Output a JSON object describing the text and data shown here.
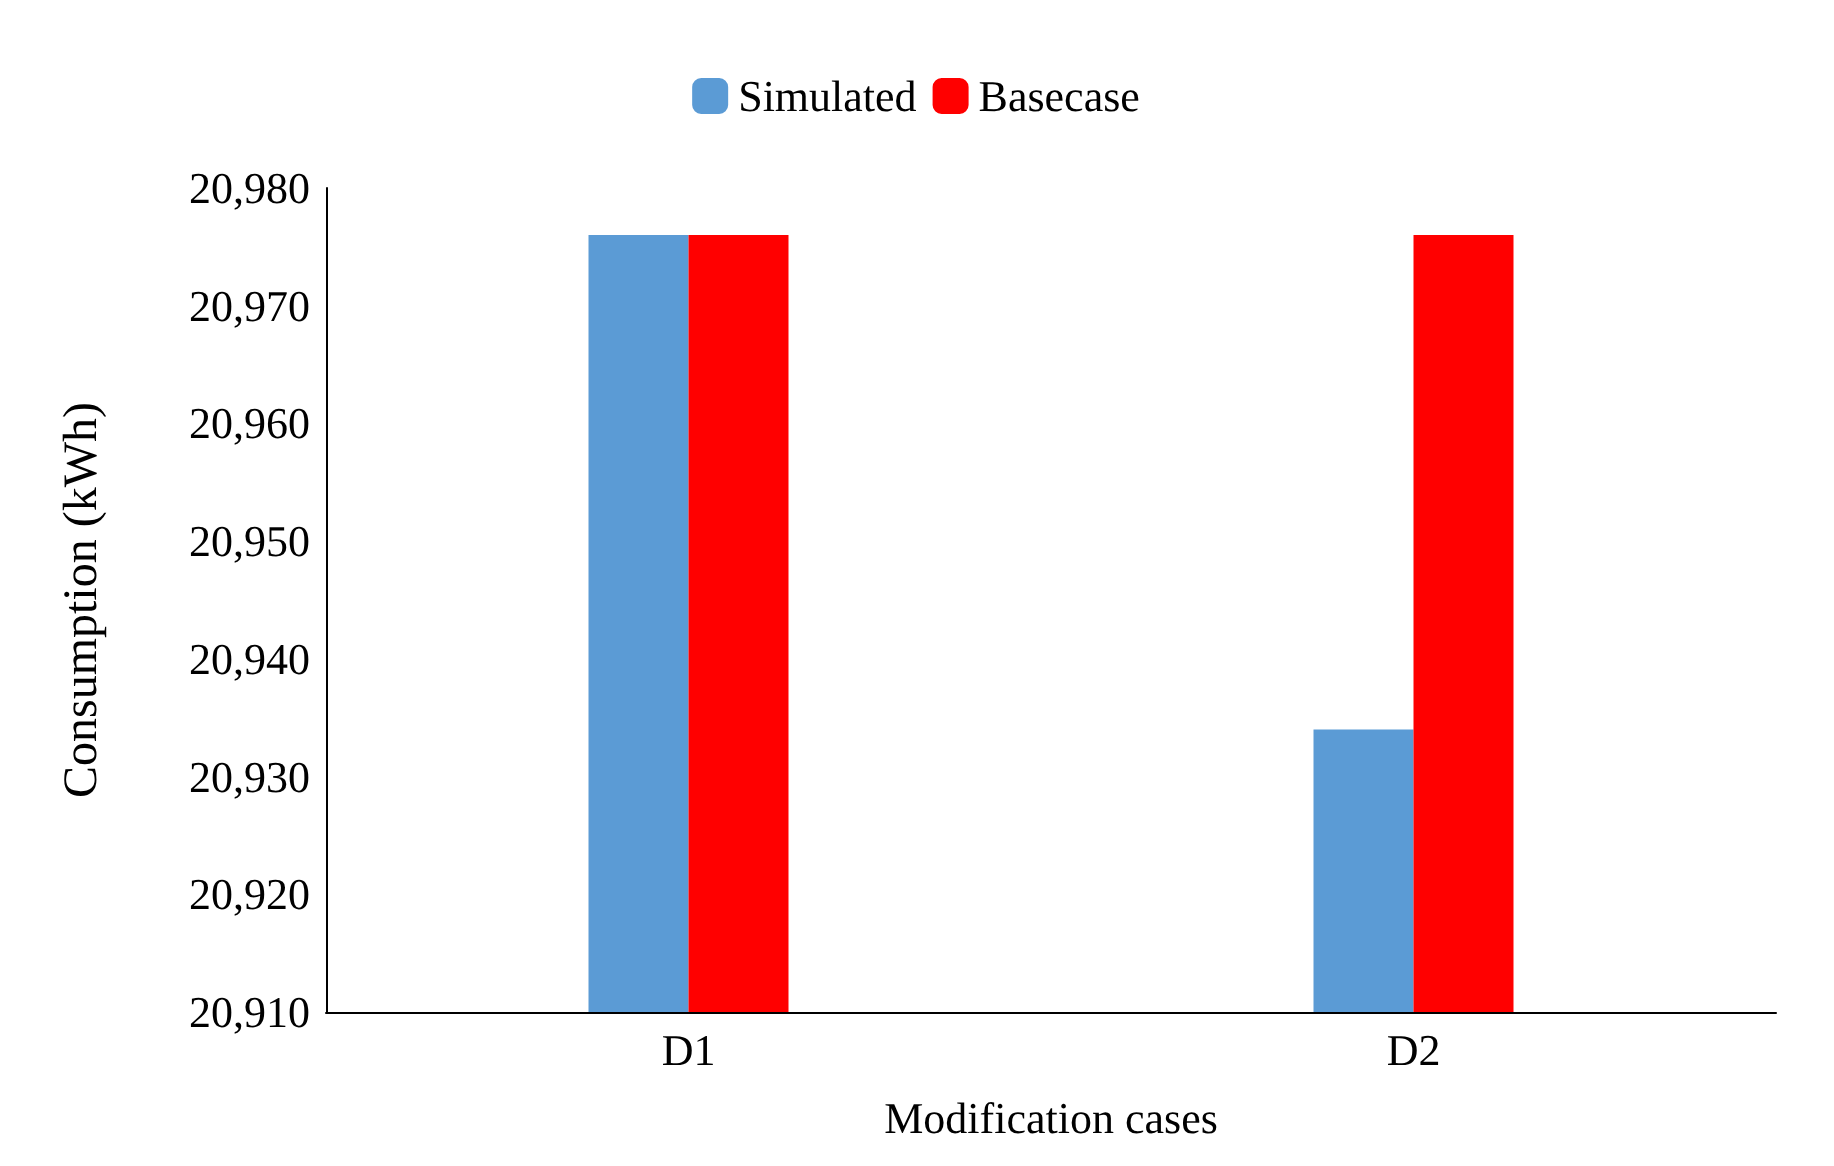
{
  "chart_data": {
    "type": "bar",
    "xlabel": "Modification cases",
    "ylabel": "Consumption (kWh)",
    "categories": [
      "D1",
      "D2"
    ],
    "series": [
      {
        "name": "Simulated",
        "color": "#5b9bd5",
        "values": [
          20976,
          20934
        ]
      },
      {
        "name": "Basecase",
        "color": "#ff0000",
        "values": [
          20976,
          20976
        ]
      }
    ],
    "ylim": [
      20910,
      20980
    ],
    "yticks": [
      {
        "value": 20910,
        "label": "20,910"
      },
      {
        "value": 20920,
        "label": "20,920"
      },
      {
        "value": 20930,
        "label": "20,930"
      },
      {
        "value": 20940,
        "label": "20,940"
      },
      {
        "value": 20950,
        "label": "20,950"
      },
      {
        "value": 20960,
        "label": "20,960"
      },
      {
        "value": 20970,
        "label": "20,970"
      },
      {
        "value": 20980,
        "label": "20,980"
      }
    ],
    "grid": false,
    "legend": "top"
  }
}
